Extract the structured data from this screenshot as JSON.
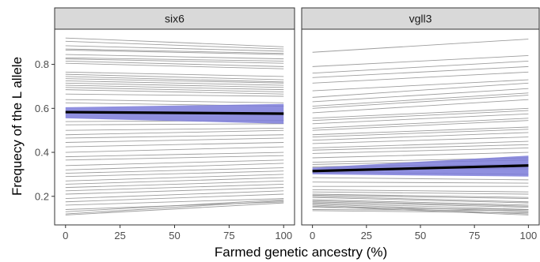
{
  "chart_data": {
    "type": "line",
    "xlabel": "Farmed genetic ancestry (%)",
    "ylabel": "Frequecy of the L allele",
    "xlim": [
      -5,
      105
    ],
    "ylim": [
      0.07,
      0.96
    ],
    "x_ticks": [
      0,
      25,
      50,
      75,
      100
    ],
    "x_tick_labels": [
      "0",
      "25",
      "50",
      "75",
      "100"
    ],
    "y_ticks": [
      0.2,
      0.4,
      0.6,
      0.8
    ],
    "y_tick_labels": [
      "0.2",
      "0.4",
      "0.6",
      "0.8"
    ],
    "grid": false,
    "colors": {
      "thin_lines": "#8c8c8c",
      "mean_line": "#000000",
      "ribbon": "#7b7bd9",
      "strip_bg": "#d9d9d9",
      "frame": "#333333"
    },
    "panels": [
      {
        "strip_label": "six6",
        "mean_line": {
          "x": [
            0,
            100
          ],
          "y": [
            0.583,
            0.576
          ]
        },
        "ribbon": {
          "x": [
            0,
            100
          ],
          "lower": [
            0.555,
            0.53
          ],
          "upper": [
            0.605,
            0.62
          ]
        },
        "thin_lines": [
          [
            0.92,
            0.88
          ],
          [
            0.905,
            0.87
          ],
          [
            0.885,
            0.86
          ],
          [
            0.87,
            0.85
          ],
          [
            0.865,
            0.845
          ],
          [
            0.845,
            0.825
          ],
          [
            0.83,
            0.815
          ],
          [
            0.825,
            0.805
          ],
          [
            0.815,
            0.79
          ],
          [
            0.805,
            0.78
          ],
          [
            0.765,
            0.745
          ],
          [
            0.755,
            0.73
          ],
          [
            0.745,
            0.72
          ],
          [
            0.735,
            0.715
          ],
          [
            0.725,
            0.705
          ],
          [
            0.715,
            0.695
          ],
          [
            0.705,
            0.685
          ],
          [
            0.695,
            0.675
          ],
          [
            0.685,
            0.665
          ],
          [
            0.665,
            0.655
          ],
          [
            0.64,
            0.625
          ],
          [
            0.625,
            0.61
          ],
          [
            0.54,
            0.545
          ],
          [
            0.525,
            0.53
          ],
          [
            0.5,
            0.51
          ],
          [
            0.48,
            0.5
          ],
          [
            0.465,
            0.48
          ],
          [
            0.445,
            0.465
          ],
          [
            0.425,
            0.445
          ],
          [
            0.4,
            0.425
          ],
          [
            0.38,
            0.4
          ],
          [
            0.365,
            0.385
          ],
          [
            0.34,
            0.365
          ],
          [
            0.32,
            0.35
          ],
          [
            0.305,
            0.33
          ],
          [
            0.29,
            0.315
          ],
          [
            0.27,
            0.3
          ],
          [
            0.255,
            0.285
          ],
          [
            0.24,
            0.27
          ],
          [
            0.225,
            0.255
          ],
          [
            0.21,
            0.24
          ],
          [
            0.19,
            0.225
          ],
          [
            0.175,
            0.21
          ],
          [
            0.16,
            0.19
          ],
          [
            0.14,
            0.175
          ],
          [
            0.13,
            0.185
          ],
          [
            0.12,
            0.18
          ],
          [
            0.115,
            0.17
          ]
        ]
      },
      {
        "strip_label": "vgll3",
        "mean_line": {
          "x": [
            0,
            100
          ],
          "y": [
            0.315,
            0.34
          ]
        },
        "ribbon": {
          "x": [
            0,
            100
          ],
          "lower": [
            0.3,
            0.29
          ],
          "upper": [
            0.33,
            0.385
          ]
        },
        "thin_lines": [
          [
            0.855,
            0.915
          ],
          [
            0.79,
            0.84
          ],
          [
            0.76,
            0.815
          ],
          [
            0.74,
            0.79
          ],
          [
            0.715,
            0.765
          ],
          [
            0.68,
            0.73
          ],
          [
            0.65,
            0.715
          ],
          [
            0.63,
            0.69
          ],
          [
            0.61,
            0.67
          ],
          [
            0.6,
            0.66
          ],
          [
            0.58,
            0.64
          ],
          [
            0.555,
            0.6
          ],
          [
            0.545,
            0.59
          ],
          [
            0.53,
            0.575
          ],
          [
            0.51,
            0.555
          ],
          [
            0.5,
            0.545
          ],
          [
            0.48,
            0.515
          ],
          [
            0.47,
            0.505
          ],
          [
            0.455,
            0.49
          ],
          [
            0.44,
            0.47
          ],
          [
            0.42,
            0.45
          ],
          [
            0.41,
            0.435
          ],
          [
            0.395,
            0.42
          ],
          [
            0.375,
            0.4
          ],
          [
            0.355,
            0.375
          ],
          [
            0.345,
            0.365
          ],
          [
            0.335,
            0.345
          ],
          [
            0.33,
            0.325
          ],
          [
            0.31,
            0.3
          ],
          [
            0.285,
            0.275
          ],
          [
            0.265,
            0.26
          ],
          [
            0.245,
            0.245
          ],
          [
            0.23,
            0.22
          ],
          [
            0.22,
            0.21
          ],
          [
            0.21,
            0.195
          ],
          [
            0.205,
            0.19
          ],
          [
            0.2,
            0.175
          ],
          [
            0.195,
            0.17
          ],
          [
            0.185,
            0.16
          ],
          [
            0.18,
            0.155
          ],
          [
            0.175,
            0.15
          ],
          [
            0.17,
            0.14
          ],
          [
            0.165,
            0.13
          ],
          [
            0.16,
            0.12
          ],
          [
            0.155,
            0.115
          ],
          [
            0.15,
            0.14
          ],
          [
            0.14,
            0.135
          ],
          [
            0.135,
            0.125
          ]
        ]
      }
    ]
  }
}
